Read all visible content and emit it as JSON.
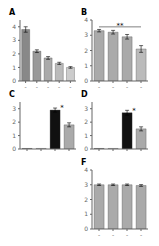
{
  "chart_data": [
    {
      "type": "bar",
      "title": "A",
      "categories": [
        "-",
        "-",
        "-",
        "-",
        "-"
      ],
      "values": [
        3.8,
        2.2,
        1.7,
        1.3,
        1.0
      ],
      "errors": [
        0.2,
        0.1,
        0.1,
        0.08,
        0.06
      ],
      "colors": [
        "#888888",
        "#999999",
        "#aaaaaa",
        "#bbbbbb",
        "#cccccc"
      ],
      "ylim": [
        0,
        4.5
      ],
      "yticks": [
        0,
        1,
        2,
        3,
        4
      ],
      "grid": false
    },
    {
      "type": "bar",
      "title": "B",
      "categories": [
        "-",
        "-",
        "-",
        "-"
      ],
      "values": [
        3.3,
        3.2,
        2.9,
        2.1
      ],
      "errors": [
        0.08,
        0.12,
        0.15,
        0.22
      ],
      "colors": [
        "#aaaaaa",
        "#aaaaaa",
        "#aaaaaa",
        "#bbbbbb"
      ],
      "ylim": [
        0,
        4.0
      ],
      "yticks": [
        0,
        1,
        2,
        3,
        4
      ],
      "grid": false,
      "annotations": [
        {
          "text": "**",
          "x": [
            0,
            3
          ],
          "y": 3.65,
          "bracket_y": 3.55
        }
      ]
    },
    {
      "type": "bar",
      "title": "C",
      "categories": [
        null,
        null,
        null,
        null
      ],
      "values": [
        0.04,
        0.04,
        2.9,
        1.8
      ],
      "errors": [
        0.0,
        0.0,
        0.15,
        0.15
      ],
      "colors": [
        "#555555",
        "#aaaaaa",
        "#111111",
        "#aaaaaa"
      ],
      "ylim": [
        0,
        3.5
      ],
      "yticks": [
        0,
        1,
        2,
        3
      ],
      "grid": false,
      "annotations": [
        {
          "text": "*",
          "x": [
            2,
            3
          ],
          "y": 3.1
        }
      ]
    },
    {
      "type": "bar",
      "title": "D",
      "categories": [
        null,
        null,
        null,
        null
      ],
      "values": [
        0.04,
        0.04,
        2.7,
        1.5
      ],
      "errors": [
        0.0,
        0.0,
        0.18,
        0.15
      ],
      "colors": [
        "#555555",
        "#aaaaaa",
        "#111111",
        "#aaaaaa"
      ],
      "ylim": [
        0,
        3.5
      ],
      "yticks": [
        0,
        1,
        2,
        3
      ],
      "grid": false,
      "annotations": [
        {
          "text": "*",
          "x": [
            2,
            3
          ],
          "y": 2.9
        }
      ]
    },
    {
      "type": "bar",
      "title": "F",
      "categories": [
        "-",
        "-",
        "-",
        "-"
      ],
      "values": [
        3.0,
        3.0,
        3.0,
        2.95
      ],
      "errors": [
        0.05,
        0.05,
        0.05,
        0.06
      ],
      "colors": [
        "#aaaaaa",
        "#aaaaaa",
        "#aaaaaa",
        "#aaaaaa"
      ],
      "ylim": [
        0,
        4.0
      ],
      "yticks": [
        0,
        1,
        2,
        3,
        4
      ],
      "grid": false
    }
  ]
}
